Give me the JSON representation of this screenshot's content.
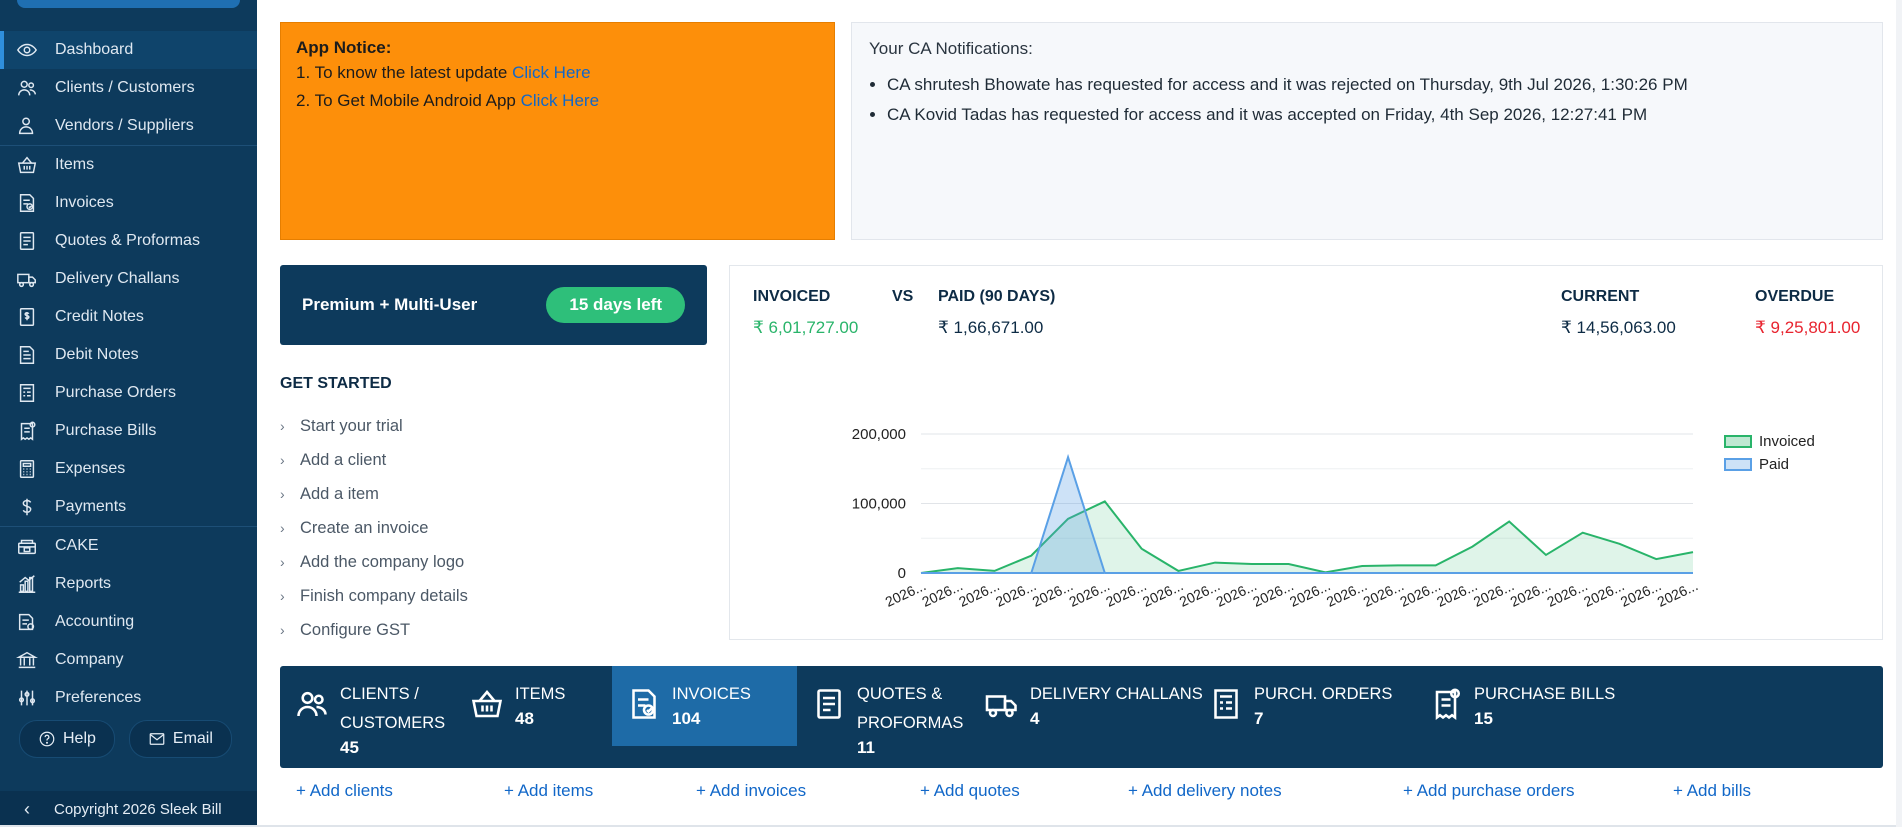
{
  "sidebar": {
    "items": [
      {
        "label": "Dashboard",
        "icon": "eye-icon",
        "active": true
      },
      {
        "label": "Clients / Customers",
        "icon": "users-icon"
      },
      {
        "label": "Vendors / Suppliers",
        "icon": "vendor-icon"
      },
      {
        "label": "Items",
        "icon": "basket-icon"
      },
      {
        "label": "Invoices",
        "icon": "invoice-icon"
      },
      {
        "label": "Quotes & Proformas",
        "icon": "document-icon"
      },
      {
        "label": "Delivery Challans",
        "icon": "truck-icon"
      },
      {
        "label": "Credit Notes",
        "icon": "dollar-doc-icon"
      },
      {
        "label": "Debit Notes",
        "icon": "debit-doc-icon"
      },
      {
        "label": "Purchase Orders",
        "icon": "purchase-order-icon"
      },
      {
        "label": "Purchase Bills",
        "icon": "purchase-bill-icon"
      },
      {
        "label": "Expenses",
        "icon": "calculator-icon"
      },
      {
        "label": "Payments",
        "icon": "dollar-icon"
      },
      {
        "label": "CAKE",
        "icon": "cake-icon"
      },
      {
        "label": "Reports",
        "icon": "chart-icon"
      },
      {
        "label": "Accounting",
        "icon": "accounting-icon"
      },
      {
        "label": "Company",
        "icon": "bank-icon"
      },
      {
        "label": "Preferences",
        "icon": "sliders-icon"
      }
    ],
    "help_label": "Help",
    "email_label": "Email",
    "collapse_glyph": "‹",
    "copyright": "Copyright 2026 Sleek Bill"
  },
  "notice": {
    "title": "App Notice:",
    "line1_text": "1. To know the latest update ",
    "line1_link": "Click Here",
    "line2_text": "2. To Get Mobile Android App ",
    "line2_link": "Click Here"
  },
  "ca": {
    "title": "Your CA Notifications:",
    "items": [
      "CA shrutesh Bhowate has requested for access and it was rejected on Thursday, 9th Jul 2026, 1:30:26 PM",
      "CA Kovid Tadas has requested for access and it was accepted on Friday, 4th Sep 2026, 12:27:41 PM"
    ]
  },
  "plan": {
    "name": "Premium + Multi-User",
    "days_left": "15 days left"
  },
  "get_started": {
    "title": "GET STARTED",
    "items": [
      "Start your trial",
      "Add a client",
      "Add a item",
      "Create an invoice",
      "Add the company logo",
      "Finish company details",
      "Configure GST"
    ]
  },
  "summary": {
    "invoiced_label": "INVOICED",
    "vs_label": "VS",
    "paid_label": "PAID (90 DAYS)",
    "current_label": "CURRENT",
    "overdue_label": "OVERDUE",
    "invoiced_value": "₹ 6,01,727.00",
    "paid_value": "₹ 1,66,671.00",
    "current_value": "₹ 14,56,063.00",
    "overdue_value": "₹ 9,25,801.00",
    "colors": {
      "green": "#29b46a",
      "red": "#e8242f",
      "blue": "#5aa0e6"
    }
  },
  "chart_data": {
    "type": "area",
    "x": [
      "2026...",
      "2026...",
      "2026...",
      "2026...",
      "2026...",
      "2026...",
      "2026...",
      "2026...",
      "2026...",
      "2026...",
      "2026...",
      "2026...",
      "2026...",
      "2026...",
      "2026...",
      "2026...",
      "2026...",
      "2026...",
      "2026...",
      "2026...",
      "2026...",
      "2026..."
    ],
    "series": [
      {
        "name": "Invoiced",
        "color": "#29b46a",
        "values": [
          0,
          7000,
          3000,
          25000,
          78000,
          103000,
          35000,
          3000,
          15000,
          13000,
          13000,
          1000,
          10000,
          11000,
          11000,
          38000,
          74000,
          26000,
          58000,
          42000,
          20000,
          30000
        ]
      },
      {
        "name": "Paid",
        "color": "#5aa0e6",
        "values": [
          0,
          0,
          0,
          0,
          166671,
          0,
          0,
          0,
          0,
          0,
          0,
          0,
          0,
          0,
          0,
          0,
          0,
          0,
          0,
          0,
          0,
          0
        ]
      }
    ],
    "y_ticks": [
      "200,000",
      "100,000",
      "0"
    ],
    "ylim": [
      0,
      200000
    ],
    "grid": true,
    "legend": "top-right"
  },
  "tiles": [
    {
      "name": "CLIENTS /\nCUSTOMERS",
      "count": "45",
      "icon": "users-icon"
    },
    {
      "name": "ITEMS",
      "count": "48",
      "icon": "basket-icon"
    },
    {
      "name": "INVOICES",
      "count": "104",
      "icon": "invoice-icon",
      "active": true
    },
    {
      "name": "QUOTES &\nPROFORMAS",
      "count": "11",
      "icon": "document-icon"
    },
    {
      "name": "DELIVERY CHALLANS",
      "count": "4",
      "icon": "truck-icon"
    },
    {
      "name": "PURCH. ORDERS",
      "count": "7",
      "icon": "purchase-order-icon"
    },
    {
      "name": "PURCHASE BILLS",
      "count": "15",
      "icon": "purchase-bill-icon"
    }
  ],
  "add_links": [
    "+ Add clients",
    "+ Add items",
    "+ Add invoices",
    "+ Add quotes",
    "+ Add delivery notes",
    "+ Add purchase orders",
    "+ Add bills"
  ]
}
